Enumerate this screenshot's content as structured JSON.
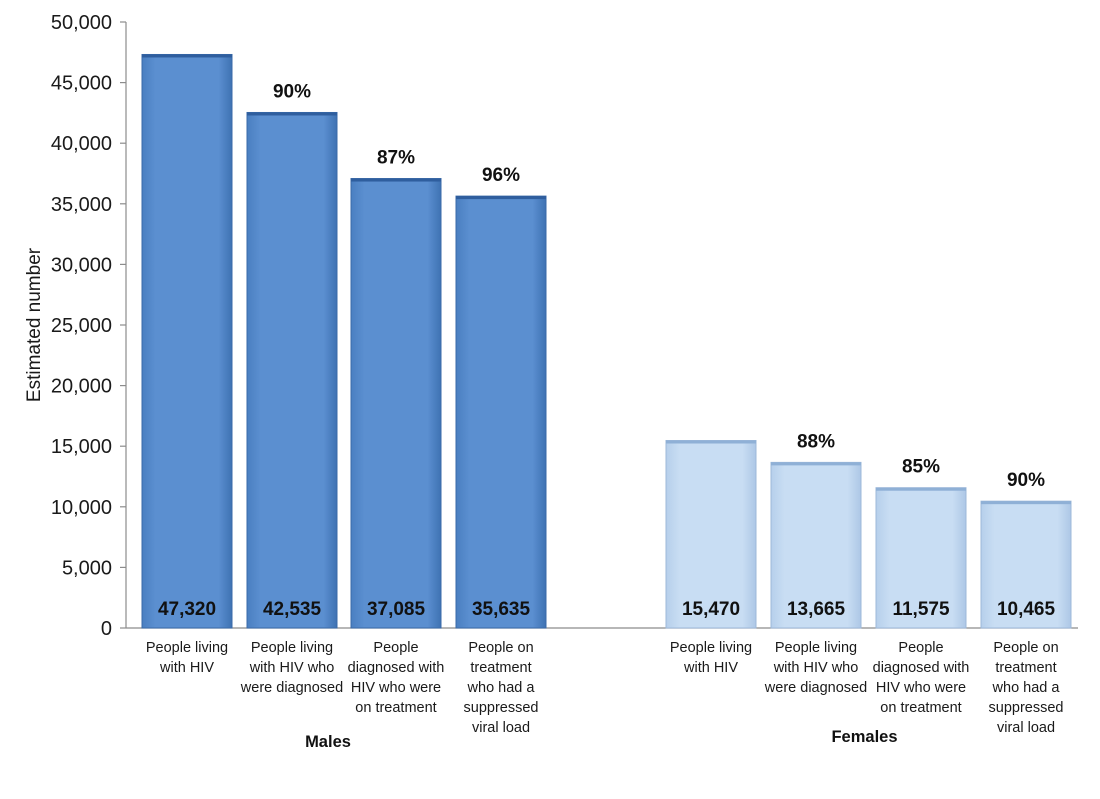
{
  "chart_data": {
    "type": "bar",
    "ylabel": "Estimated number",
    "ylim": [
      0,
      50000
    ],
    "yticks": [
      0,
      5000,
      10000,
      15000,
      20000,
      25000,
      30000,
      35000,
      40000,
      45000,
      50000
    ],
    "ytick_labels": [
      "0",
      "5,000",
      "10,000",
      "15,000",
      "20,000",
      "25,000",
      "30,000",
      "35,000",
      "40,000",
      "45,000",
      "50,000"
    ],
    "grid": false,
    "groups": [
      {
        "name": "Males",
        "color": "#5b8fd0",
        "bars": [
          {
            "category": "People living with HIV",
            "label_lines": [
              "People living",
              "with HIV"
            ],
            "value": 47320,
            "value_label": "47,320",
            "percent_label": ""
          },
          {
            "category": "People living with HIV who were diagnosed",
            "label_lines": [
              "People living",
              "with HIV who",
              "were diagnosed"
            ],
            "value": 42535,
            "value_label": "42,535",
            "percent_label": "90%"
          },
          {
            "category": "People diagnosed with HIV who were on treatment",
            "label_lines": [
              "People",
              "diagnosed with",
              "HIV who were",
              "on treatment"
            ],
            "value": 37085,
            "value_label": "37,085",
            "percent_label": "87%"
          },
          {
            "category": "People on treatment who had a suppressed viral load",
            "label_lines": [
              "People on",
              "treatment",
              "who had a",
              "suppressed",
              "viral load"
            ],
            "value": 35635,
            "value_label": "35,635",
            "percent_label": "96%"
          }
        ]
      },
      {
        "name": "Females",
        "color": "#c6dcf2",
        "bars": [
          {
            "category": "People living with HIV",
            "label_lines": [
              "People living",
              "with HIV"
            ],
            "value": 15470,
            "value_label": "15,470",
            "percent_label": ""
          },
          {
            "category": "People living with HIV who were diagnosed",
            "label_lines": [
              "People living",
              "with HIV who",
              "were diagnosed"
            ],
            "value": 13665,
            "value_label": "13,665",
            "percent_label": "88%"
          },
          {
            "category": "People diagnosed with HIV who were on treatment",
            "label_lines": [
              "People",
              "diagnosed with",
              "HIV who were",
              "on treatment"
            ],
            "value": 11575,
            "value_label": "11,575",
            "percent_label": "85%"
          },
          {
            "category": "People on treatment who had a suppressed viral load",
            "label_lines": [
              "People on",
              "treatment",
              "who had a",
              "suppressed",
              "viral load"
            ],
            "value": 10465,
            "value_label": "10,465",
            "percent_label": "90%"
          }
        ]
      }
    ]
  }
}
